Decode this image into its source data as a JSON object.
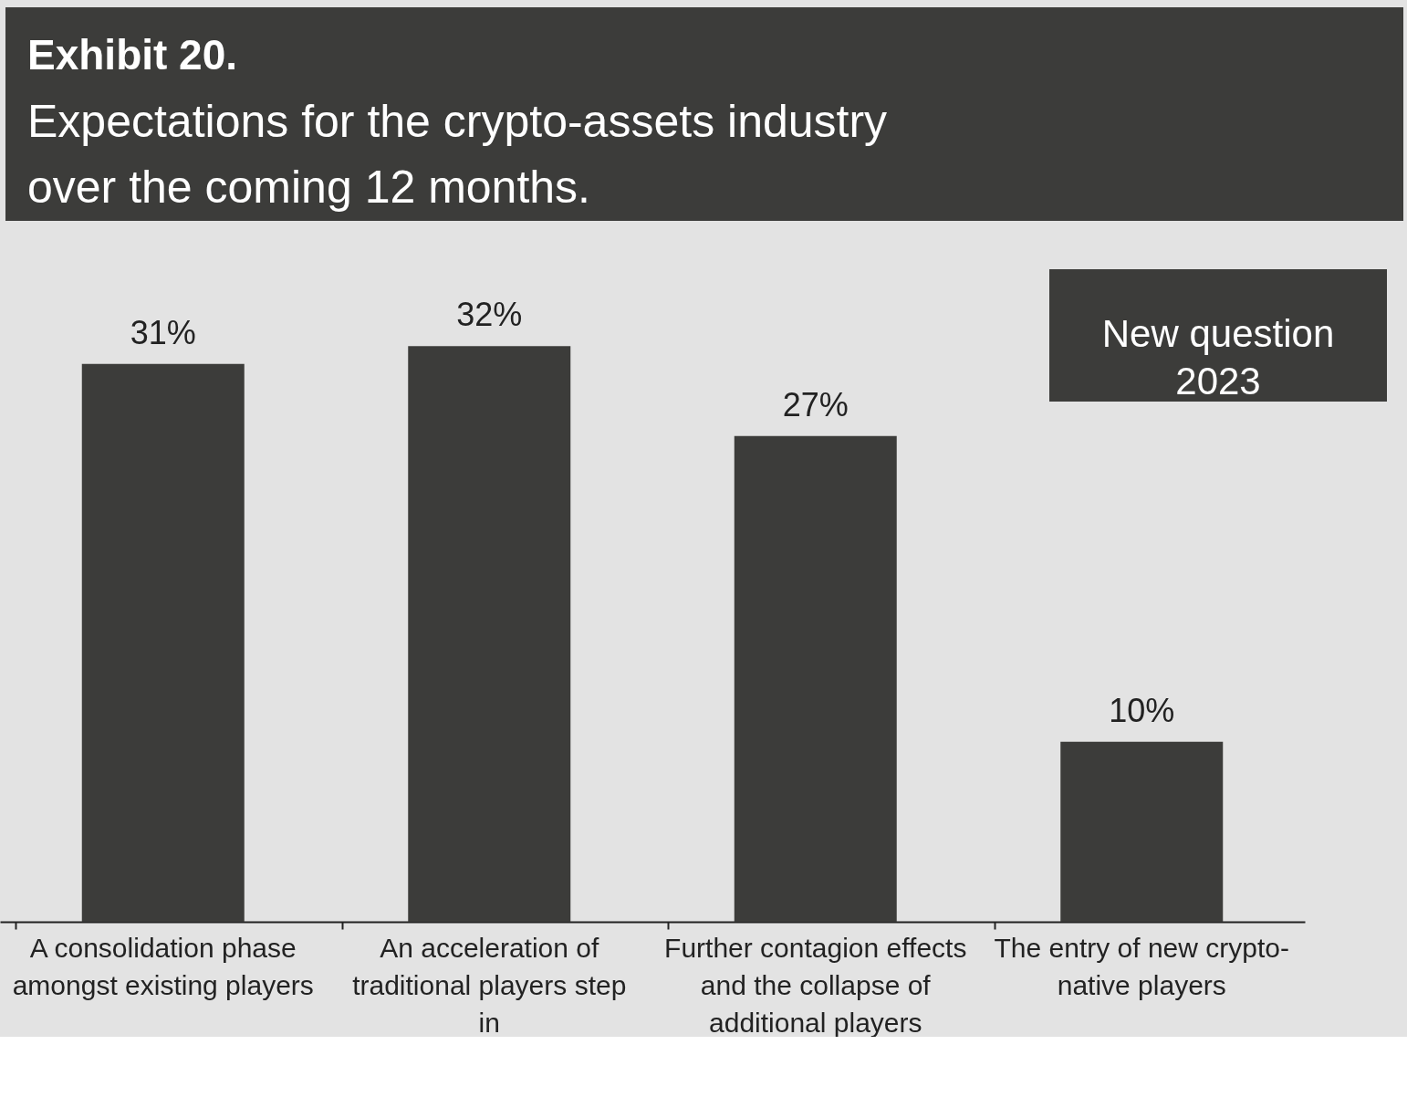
{
  "chart_data": {
    "type": "bar",
    "title": "Exhibit 20.",
    "subtitle": "Expectations for the crypto-assets industry over the coming 12 months.",
    "categories": [
      "A consolidation phase amongst existing players",
      "An acceleration of traditional players step in",
      "Further contagion effects and the collapse of additional players",
      "The entry of new crypto-native players"
    ],
    "values": [
      31,
      32,
      27,
      10
    ],
    "value_labels": [
      "31%",
      "32%",
      "27%",
      "10%"
    ],
    "color": "#3c3c3a",
    "annotations": [
      "New question 2023"
    ]
  }
}
